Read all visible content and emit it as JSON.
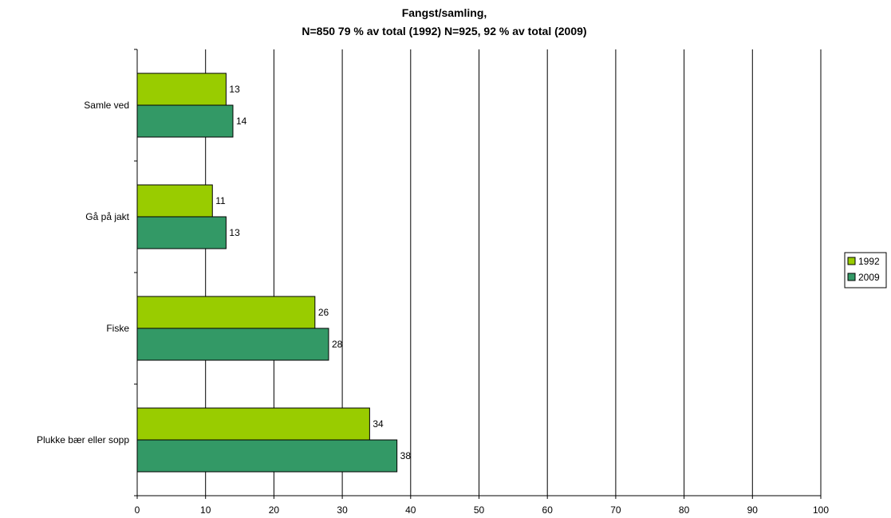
{
  "chart_data": {
    "type": "bar",
    "orientation": "horizontal",
    "title": "Fangst/samling,",
    "subtitle": "N=850 79 % av total (1992) N=925, 92 % av total (2009)",
    "categories": [
      "Samle ved",
      "Gå på jakt",
      "Fiske",
      "Plukke bær eller sopp"
    ],
    "series": [
      {
        "name": "1992",
        "color": "#99cc00",
        "values": [
          13,
          11,
          26,
          34
        ]
      },
      {
        "name": "2009",
        "color": "#339966",
        "values": [
          14,
          13,
          28,
          38
        ]
      }
    ],
    "xlim": [
      0,
      100
    ],
    "xticks": [
      0,
      10,
      20,
      30,
      40,
      50,
      60,
      70,
      80,
      90,
      100
    ],
    "xlabel": "",
    "ylabel": "",
    "grid": "vertical",
    "legend": "right"
  }
}
